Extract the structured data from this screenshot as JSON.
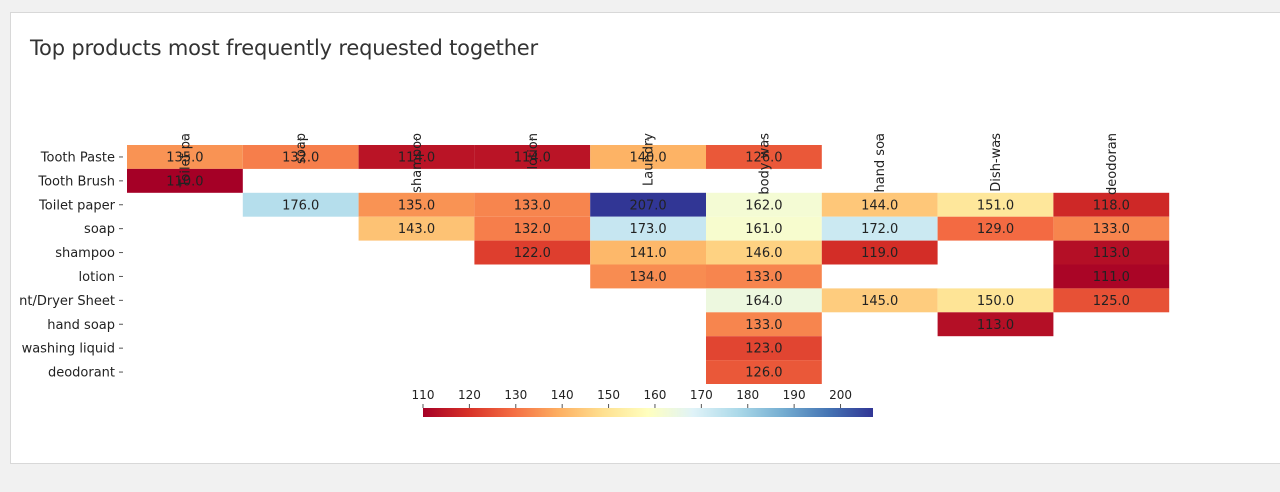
{
  "chart_data": {
    "type": "heatmap",
    "title": "Top products most frequently requested together",
    "columns": [
      "Toilet pa",
      "soap",
      "shampoo",
      "lotion",
      "Laundry",
      "body was",
      "hand soa",
      "Dish-was",
      "deodoran"
    ],
    "rows": [
      "Tooth Paste",
      "Tooth Brush",
      "Toilet paper",
      "soap",
      "shampoo",
      "lotion",
      "nt/Dryer Sheet",
      "hand soap",
      "washing liquid",
      "deodorant"
    ],
    "values": [
      [
        135.0,
        132.0,
        114.0,
        114.0,
        140.0,
        126.0,
        null,
        null,
        null
      ],
      [
        110.0,
        null,
        null,
        null,
        null,
        null,
        null,
        null,
        null
      ],
      [
        null,
        176.0,
        135.0,
        133.0,
        207.0,
        162.0,
        144.0,
        151.0,
        118.0
      ],
      [
        null,
        null,
        143.0,
        132.0,
        173.0,
        161.0,
        172.0,
        129.0,
        133.0
      ],
      [
        null,
        null,
        null,
        122.0,
        141.0,
        146.0,
        119.0,
        null,
        113.0
      ],
      [
        null,
        null,
        null,
        null,
        134.0,
        133.0,
        null,
        null,
        111.0
      ],
      [
        null,
        null,
        null,
        null,
        null,
        164.0,
        145.0,
        150.0,
        125.0
      ],
      [
        null,
        null,
        null,
        null,
        null,
        133.0,
        null,
        113.0,
        null
      ],
      [
        null,
        null,
        null,
        null,
        null,
        123.0,
        null,
        null,
        null
      ],
      [
        null,
        null,
        null,
        null,
        null,
        126.0,
        null,
        null,
        null
      ]
    ],
    "value_labels": [
      [
        "135.0",
        "132.0",
        "114.0",
        "114.0",
        "140.0",
        "126.0",
        "",
        "",
        ""
      ],
      [
        "110.0",
        "",
        "",
        "",
        "",
        "",
        "",
        "",
        ""
      ],
      [
        "",
        "176.0",
        "135.0",
        "133.0",
        "207.0",
        "162.0",
        "144.0",
        "151.0",
        "118.0"
      ],
      [
        "",
        "",
        "143.0",
        "132.0",
        "173.0",
        "161.0",
        "172.0",
        "129.0",
        "133.0"
      ],
      [
        "",
        "",
        "",
        "122.0",
        "141.0",
        "146.0",
        "119.0",
        "",
        "113.0"
      ],
      [
        "",
        "",
        "",
        "",
        "134.0",
        "133.0",
        "",
        "",
        "111.0"
      ],
      [
        "",
        "",
        "",
        "",
        "",
        "164.0",
        "145.0",
        "150.0",
        "125.0"
      ],
      [
        "",
        "",
        "",
        "",
        "",
        "133.0",
        "",
        "113.0",
        ""
      ],
      [
        "",
        "",
        "",
        "",
        "",
        "123.0",
        "",
        "",
        ""
      ],
      [
        "",
        "",
        "",
        "",
        "",
        "126.0",
        "",
        "",
        ""
      ]
    ],
    "colorbar": {
      "range": [
        110,
        207
      ],
      "ticks": [
        110,
        120,
        130,
        140,
        150,
        160,
        170,
        180,
        190,
        200
      ],
      "tick_labels": [
        "110",
        "120",
        "130",
        "140",
        "150",
        "160",
        "170",
        "180",
        "190",
        "200"
      ],
      "colormap": "RdYlBu",
      "stops": [
        "#a50026",
        "#d73027",
        "#f46d43",
        "#fdae61",
        "#fee090",
        "#ffffbf",
        "#e0f3f8",
        "#abd9e9",
        "#74add1",
        "#4575b4",
        "#313695"
      ]
    },
    "legend": "bottom"
  }
}
